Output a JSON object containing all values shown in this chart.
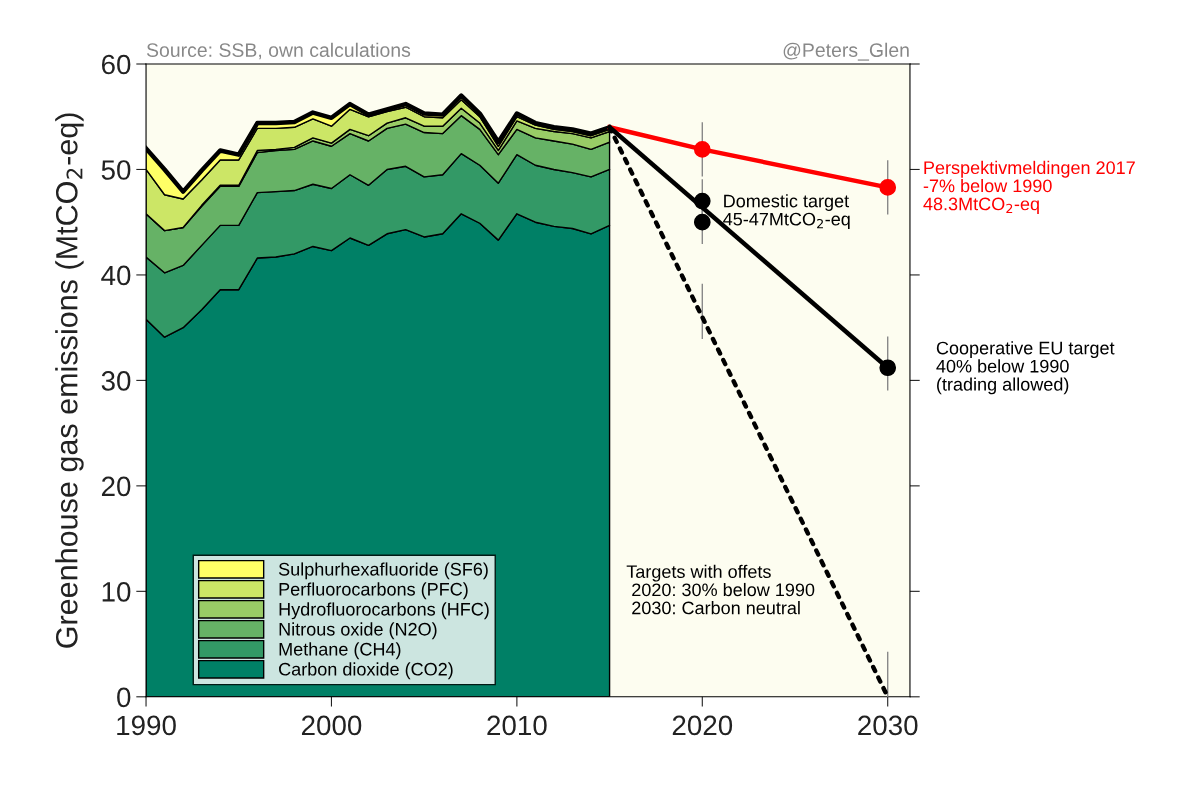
{
  "chart_data": {
    "type": "area",
    "stacked": true,
    "ylabel": "Greenhouse gas emissions (MtCO$_{2}$-eq)",
    "x": [
      1990,
      1991,
      1992,
      1993,
      1994,
      1995,
      1996,
      1997,
      1998,
      1999,
      2000,
      2001,
      2002,
      2003,
      2004,
      2005,
      2006,
      2007,
      2008,
      2009,
      2010,
      2011,
      2012,
      2013,
      2014,
      2015
    ],
    "xlim": [
      1990,
      2031.2
    ],
    "xticks": [
      1990,
      2000,
      2010,
      2020,
      2030
    ],
    "ylim": [
      0,
      60
    ],
    "yticks": [
      0,
      10,
      20,
      30,
      40,
      50,
      60
    ],
    "grid": false,
    "legend": "bottom left",
    "annotations": [
      "Source: SSB, own calculations",
      "@Peters_Glen"
    ],
    "series": [
      {
        "name": "Carbon dioxide (CO2)",
        "color": "#008066",
        "values": [
          35.8,
          34.1,
          35.0,
          36.7,
          38.6,
          38.6,
          41.6,
          41.7,
          42.0,
          42.7,
          42.3,
          43.5,
          42.8,
          43.9,
          44.3,
          43.6,
          43.9,
          45.8,
          44.9,
          43.3,
          45.8,
          45.0,
          44.6,
          44.4,
          43.9,
          44.7
        ]
      },
      {
        "name": "Methane (CH4)",
        "color": "#339966",
        "values": [
          5.9,
          6.1,
          5.9,
          6.1,
          6.1,
          6.1,
          6.2,
          6.2,
          6.0,
          5.9,
          5.9,
          6.0,
          5.7,
          6.1,
          6.0,
          5.7,
          5.6,
          5.7,
          5.5,
          5.4,
          5.6,
          5.4,
          5.4,
          5.3,
          5.4,
          5.3
        ]
      },
      {
        "name": "Nitrous oxide (N2O)",
        "color": "#66b266",
        "values": [
          4.1,
          4.0,
          3.6,
          3.7,
          3.7,
          3.7,
          3.8,
          3.9,
          3.9,
          4.1,
          4.0,
          3.9,
          4.2,
          3.9,
          4.0,
          4.2,
          3.9,
          3.6,
          3.4,
          2.7,
          2.4,
          2.6,
          2.7,
          2.7,
          2.6,
          2.6
        ]
      },
      {
        "name": "Hydrofluorocarbons (HFC)",
        "color": "#99cc66",
        "values": [
          0,
          0,
          0,
          0.1,
          0.1,
          0.1,
          0.2,
          0.1,
          0.2,
          0.3,
          0.3,
          0.4,
          0.5,
          0.5,
          0.6,
          0.6,
          0.7,
          0.7,
          0.6,
          0.4,
          0.8,
          0.9,
          0.9,
          1.0,
          1.1,
          1.0
        ]
      },
      {
        "name": "Perfluorocarbons (PFC)",
        "color": "#cce666",
        "values": [
          4.2,
          3.4,
          2.7,
          2.4,
          2.4,
          2.4,
          2.1,
          2.0,
          1.9,
          1.8,
          1.6,
          1.9,
          1.8,
          1.1,
          1.0,
          0.9,
          0.8,
          0.8,
          0.6,
          0.4,
          0.4,
          0.3,
          0.2,
          0.2,
          0.2,
          0.2
        ]
      },
      {
        "name": "Sulphurhexafluoride (SF6)",
        "color": "#ffff66",
        "values": [
          2.0,
          2.4,
          0.7,
          0.9,
          0.9,
          0.5,
          0.5,
          0.5,
          0.5,
          0.6,
          0.8,
          0.5,
          0.2,
          0.2,
          0.3,
          0.3,
          0.3,
          0.4,
          0.3,
          0.4,
          0.3,
          0.2,
          0.2,
          0.2,
          0.2,
          0.2
        ]
      },
      {
        "type": "line",
        "name": "Perspektivmeldingen 2017\n-7% below 1990\n48.3MtCO$_{2}$-eq",
        "color": "#ff0000",
        "x": [
          2015,
          2020,
          2030
        ],
        "values": [
          54.0,
          51.9,
          48.3
        ],
        "errors": [
          null,
          [
            49.4,
            54.4
          ],
          [
            45.8,
            50.8
          ]
        ],
        "marker": "circle",
        "line_style": "solid"
      },
      {
        "type": "line",
        "name": "Cooperative EU target\n40% below 1990\n(trading allowed)",
        "color": "#000000",
        "x": [
          2015,
          2030
        ],
        "values": [
          54.0,
          31.2
        ],
        "errors": [
          null,
          [
            29.1,
            34.1
          ]
        ],
        "marker": "circle",
        "line_style": "solid"
      },
      {
        "type": "scatter",
        "name": "Domestic target\n45-47MtCO$_{2}$-eq",
        "color": "#000000",
        "x": [
          2020,
          2020
        ],
        "values": [
          47,
          45
        ],
        "errors": [
          2,
          2
        ],
        "marker": "circle"
      },
      {
        "type": "line",
        "name": "Targets with offets\n 2020: 30% below 1990\n 2030: Carbon neutral",
        "color": "#000000",
        "x": [
          2015,
          2020,
          2030
        ],
        "values": [
          54.0,
          36.0,
          0
        ],
        "errors": [
          null,
          [
            34.0,
            39.1
          ],
          [
            0,
            4.2
          ]
        ],
        "marker": "none",
        "line_style": "dotted"
      }
    ]
  }
}
